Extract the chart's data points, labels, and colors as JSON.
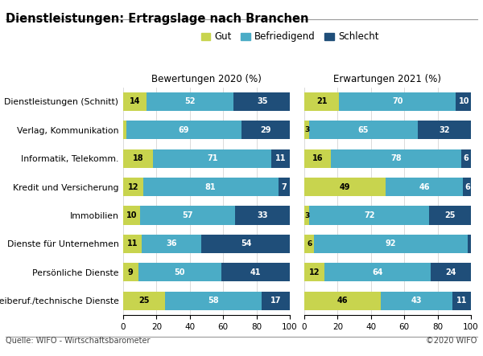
{
  "title": "Dienstleistungen: Ertragslage nach Branchen",
  "categories": [
    "Dienstleistungen (Schnitt)",
    "Verlag, Kommunikation",
    "Informatik, Telekomm.",
    "Kredit und Versicherung",
    "Immobilien",
    "Dienste für Unternehmen",
    "Persönliche Dienste",
    "Freiberuf./technische Dienste"
  ],
  "bewertungen_2020": {
    "gut": [
      14,
      2,
      18,
      12,
      10,
      11,
      9,
      25
    ],
    "befriedigend": [
      52,
      69,
      71,
      81,
      57,
      36,
      50,
      58
    ],
    "schlecht": [
      35,
      29,
      11,
      7,
      33,
      54,
      41,
      17
    ]
  },
  "erwartungen_2021": {
    "gut": [
      21,
      3,
      16,
      49,
      3,
      6,
      12,
      46
    ],
    "befriedigend": [
      70,
      65,
      78,
      46,
      72,
      92,
      64,
      43
    ],
    "schlecht": [
      10,
      32,
      6,
      6,
      25,
      2,
      24,
      11
    ]
  },
  "colors": {
    "gut": "#c8d44e",
    "befriedigend": "#4bacc6",
    "schlecht": "#1f4e79"
  },
  "legend_labels": [
    "Gut",
    "Befriedigend",
    "Schlecht"
  ],
  "col1_title": "Bewertungen 2020 (%)",
  "col2_title": "Erwartungen 2021 (%)",
  "source": "Quelle: WIFO - Wirtschaftsbarometer",
  "copyright": "©2020 WIFO",
  "xticks": [
    0,
    20,
    40,
    60,
    80,
    100
  ]
}
